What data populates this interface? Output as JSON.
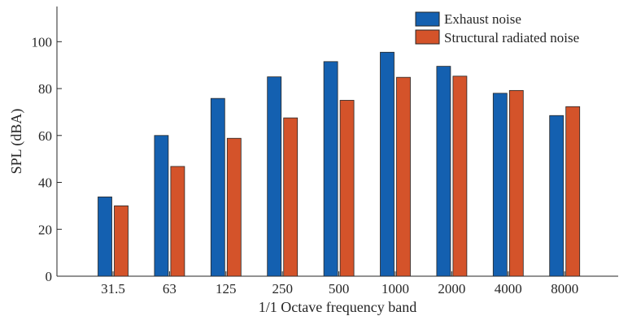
{
  "chart_data": {
    "type": "bar",
    "title": "",
    "xlabel": "1/1 Octave frequency band",
    "ylabel": "SPL (dBA)",
    "ylim": [
      0,
      115
    ],
    "yticks": [
      0,
      20,
      40,
      60,
      80,
      100
    ],
    "categories": [
      "31.5",
      "63",
      "125",
      "250",
      "500",
      "1000",
      "2000",
      "4000",
      "8000"
    ],
    "series": [
      {
        "name": "Exhaust noise",
        "color": "#1460b0",
        "values": [
          33.8,
          60.0,
          75.8,
          85.0,
          91.5,
          95.5,
          89.5,
          78.0,
          68.5
        ]
      },
      {
        "name": "Structural radiated noise",
        "color": "#d4532a",
        "values": [
          30.0,
          46.8,
          58.8,
          67.5,
          75.0,
          84.8,
          85.3,
          79.2,
          72.3
        ]
      }
    ],
    "legend_position": "top-right",
    "grid": false
  }
}
